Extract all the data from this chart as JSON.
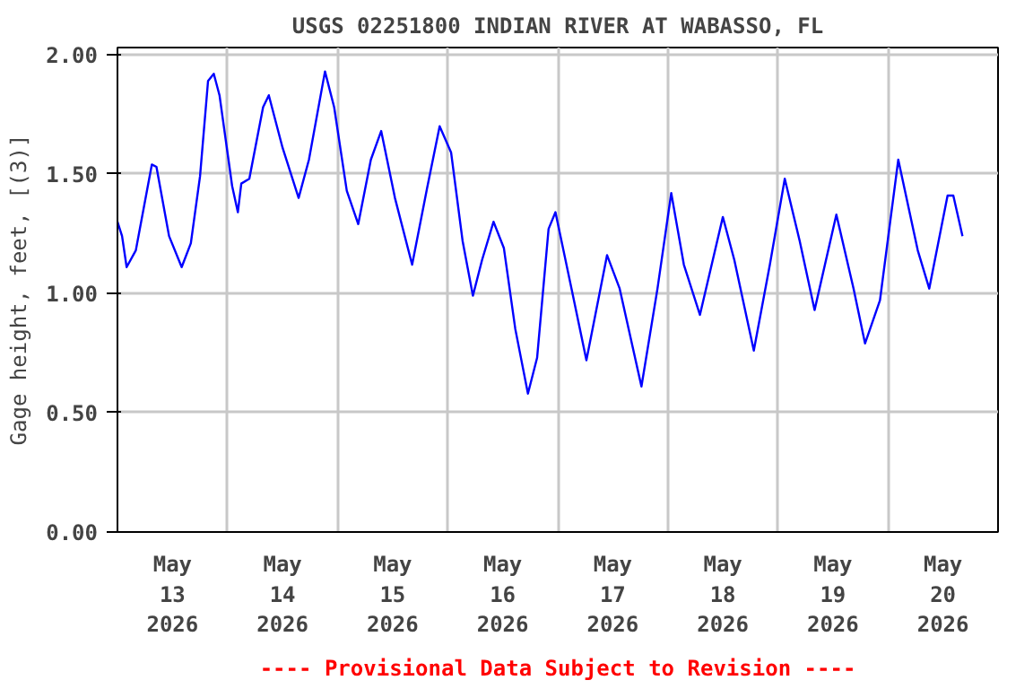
{
  "chart_data": {
    "type": "line",
    "title": "USGS 02251800 INDIAN RIVER AT WABASSO, FL",
    "ylabel": "Gage height, feet, [(3)]",
    "annotations": [
      "---- Provisional Data Subject to Revision ----"
    ],
    "x": [
      "2026-05-13T00:00",
      "2026-05-13T01:00",
      "2026-05-13T02:00",
      "2026-05-13T04:00",
      "2026-05-13T07:30",
      "2026-05-13T08:30",
      "2026-05-13T11:15",
      "2026-05-13T14:00",
      "2026-05-13T16:00",
      "2026-05-13T18:00",
      "2026-05-13T19:45",
      "2026-05-13T21:00",
      "2026-05-13T22:15",
      "2026-05-14T01:00",
      "2026-05-14T02:15",
      "2026-05-14T03:00",
      "2026-05-14T04:45",
      "2026-05-14T07:45",
      "2026-05-14T09:00",
      "2026-05-14T12:00",
      "2026-05-14T15:30",
      "2026-05-14T17:45",
      "2026-05-14T21:15",
      "2026-05-14T23:15",
      "2026-05-15T02:00",
      "2026-05-15T04:30",
      "2026-05-15T07:15",
      "2026-05-15T09:30",
      "2026-05-15T12:30",
      "2026-05-15T16:15",
      "2026-05-15T19:30",
      "2026-05-15T22:15",
      "2026-05-16T00:45",
      "2026-05-16T03:15",
      "2026-05-16T05:30",
      "2026-05-16T07:30",
      "2026-05-16T10:00",
      "2026-05-16T12:15",
      "2026-05-16T14:45",
      "2026-05-16T17:30",
      "2026-05-16T19:30",
      "2026-05-16T22:00",
      "2026-05-16T23:30",
      "2026-05-17T03:00",
      "2026-05-17T06:15",
      "2026-05-17T10:45",
      "2026-05-17T13:30",
      "2026-05-17T18:15",
      "2026-05-17T21:45",
      "2026-05-18T00:45",
      "2026-05-18T03:30",
      "2026-05-18T07:00",
      "2026-05-18T12:00",
      "2026-05-18T14:30",
      "2026-05-18T18:45",
      "2026-05-18T22:15",
      "2026-05-19T01:30",
      "2026-05-19T04:45",
      "2026-05-19T08:00",
      "2026-05-19T12:45",
      "2026-05-19T16:30",
      "2026-05-19T19:00",
      "2026-05-19T22:15",
      "2026-05-20T02:15",
      "2026-05-20T06:30",
      "2026-05-20T09:00",
      "2026-05-20T13:00",
      "2026-05-20T14:15",
      "2026-05-20T16:15"
    ],
    "series": [
      {
        "color": "#0000ff",
        "values": [
          1.3,
          1.24,
          1.11,
          1.18,
          1.54,
          1.53,
          1.24,
          1.11,
          1.21,
          1.49,
          1.89,
          1.92,
          1.83,
          1.45,
          1.34,
          1.46,
          1.48,
          1.78,
          1.83,
          1.61,
          1.4,
          1.56,
          1.93,
          1.78,
          1.43,
          1.29,
          1.56,
          1.68,
          1.4,
          1.12,
          1.44,
          1.7,
          1.59,
          1.22,
          0.99,
          1.14,
          1.3,
          1.19,
          0.85,
          0.58,
          0.73,
          1.27,
          1.34,
          1.02,
          0.72,
          1.16,
          1.02,
          0.61,
          1.02,
          1.42,
          1.12,
          0.91,
          1.32,
          1.14,
          0.76,
          1.12,
          1.48,
          1.22,
          0.93,
          1.33,
          1.02,
          0.79,
          0.97,
          1.56,
          1.18,
          1.02,
          1.41,
          1.41,
          1.24
        ]
      }
    ],
    "xlim": [
      "2026-05-13T00:00",
      "2026-05-21T00:00"
    ],
    "xticks": [
      {
        "value": "2026-05-13T12:00",
        "label": "May\n13\n2026"
      },
      {
        "value": "2026-05-14T12:00",
        "label": "May\n14\n2026"
      },
      {
        "value": "2026-05-15T12:00",
        "label": "May\n15\n2026"
      },
      {
        "value": "2026-05-16T12:00",
        "label": "May\n16\n2026"
      },
      {
        "value": "2026-05-17T12:00",
        "label": "May\n17\n2026"
      },
      {
        "value": "2026-05-18T12:00",
        "label": "May\n18\n2026"
      },
      {
        "value": "2026-05-19T12:00",
        "label": "May\n19\n2026"
      },
      {
        "value": "2026-05-20T12:00",
        "label": "May\n20\n2026"
      },
      {
        "value": "2026-05-14T00:00",
        "label": null
      },
      {
        "value": "2026-05-15T00:00",
        "label": null
      },
      {
        "value": "2026-05-16T00:00",
        "label": null
      },
      {
        "value": "2026-05-17T00:00",
        "label": null
      },
      {
        "value": "2026-05-18T00:00",
        "label": null
      },
      {
        "value": "2026-05-19T00:00",
        "label": null
      },
      {
        "value": "2026-05-20T00:00",
        "label": null
      }
    ],
    "ylim": [
      0,
      2.03
    ],
    "yticks": [
      {
        "value": 0,
        "label": "0.00"
      },
      {
        "value": 0.5,
        "label": "0.50"
      },
      {
        "value": 1,
        "label": "1.00"
      },
      {
        "value": 1.5,
        "label": "1.50"
      },
      {
        "value": 2,
        "label": "2.00"
      }
    ],
    "grid": true,
    "line_style": "solid"
  }
}
